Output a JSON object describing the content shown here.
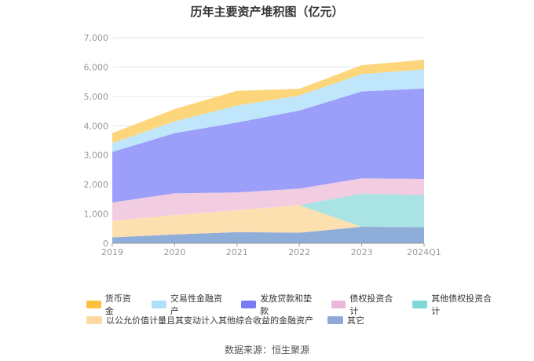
{
  "chart_data": {
    "type": "area",
    "title": "历年主要资产堆积图（亿元）",
    "categories": [
      "2019",
      "2020",
      "2021",
      "2022",
      "2023",
      "2024Q1"
    ],
    "ylim": [
      0,
      7000
    ],
    "yticks": [
      "0",
      "1,000",
      "2,000",
      "3,000",
      "4,000",
      "5,000",
      "6,000",
      "7,000"
    ],
    "grid": true,
    "legend_position": "bottom",
    "series": [
      {
        "name": "其它",
        "color": "#8fadd9",
        "values": [
          200,
          300,
          380,
          360,
          560,
          550
        ]
      },
      {
        "name": "以公允价值计量且其变动计入其他综合收益的金融资产",
        "color": "#fde0b0",
        "values": [
          560,
          660,
          750,
          940,
          0,
          0
        ]
      },
      {
        "name": "其他债权投资合计",
        "color": "#a9e3e3",
        "values": [
          0,
          0,
          0,
          0,
          1130,
          1090
        ]
      },
      {
        "name": "债权投资合计",
        "color": "#f2cde1",
        "values": [
          630,
          740,
          600,
          560,
          520,
          550
        ]
      },
      {
        "name": "发放贷款和垫款",
        "color": "#9b9ffa",
        "values": [
          1720,
          2050,
          2380,
          2660,
          2960,
          3080
        ]
      },
      {
        "name": "交易性金融资产",
        "color": "#bfe6fb",
        "values": [
          300,
          400,
          580,
          510,
          590,
          650
        ]
      },
      {
        "name": "货币资金",
        "color": "#fdd67c",
        "values": [
          340,
          420,
          500,
          230,
          300,
          330
        ]
      }
    ]
  },
  "legend": {
    "items": [
      {
        "name": "货币资金",
        "color": "#fdc23d"
      },
      {
        "name": "交易性金融资产",
        "color": "#ade1fb"
      },
      {
        "name": "发放贷款和垫款",
        "color": "#7b7cf3"
      },
      {
        "name": "债权投资合计",
        "color": "#eab8d8"
      },
      {
        "name": "其他债权投资合计",
        "color": "#7fd8d8"
      },
      {
        "name": "以公允价值计量且其变动计入其他综合收益的金融资产",
        "color": "#fcd9a0"
      },
      {
        "name": "其它",
        "color": "#8fa8d8"
      }
    ]
  },
  "source": "数据来源：恒生聚源"
}
